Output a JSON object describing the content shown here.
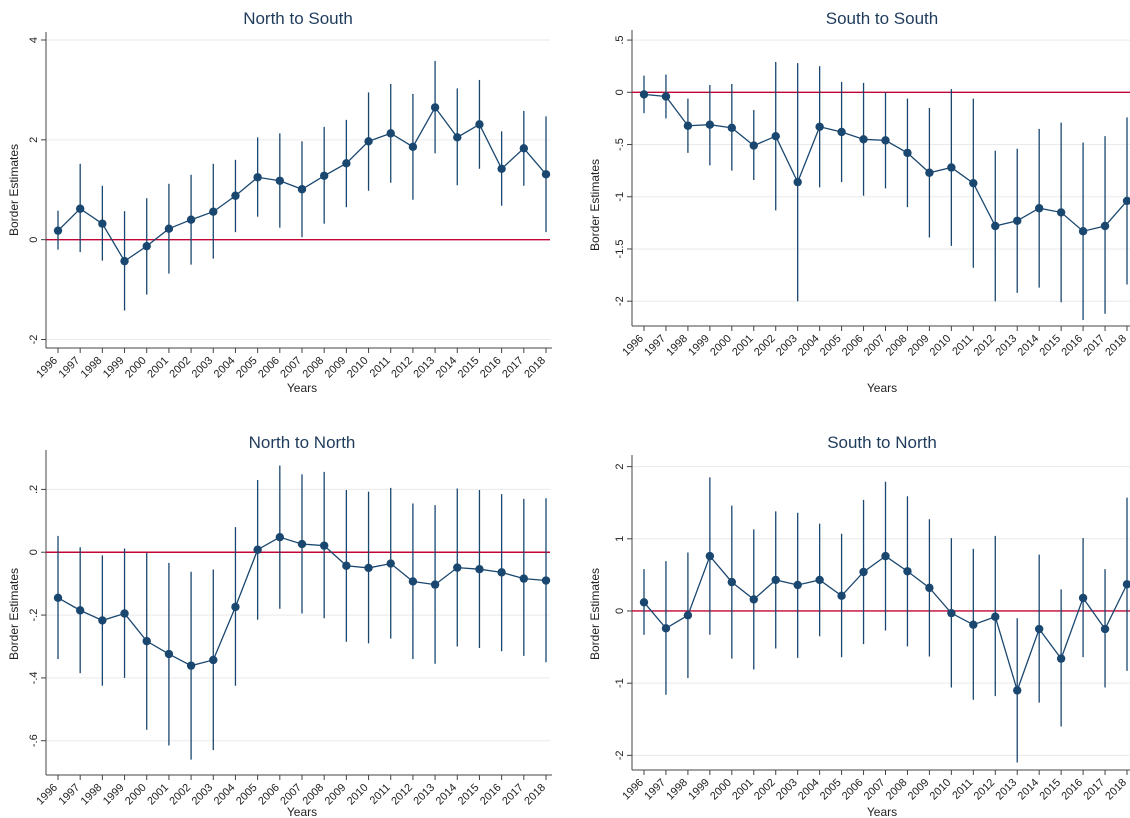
{
  "chart_data": [
    {
      "type": "line",
      "title": "North to South",
      "xlabel": "Years",
      "ylabel": "Border Estimates",
      "x": [
        1996,
        1997,
        1998,
        1999,
        2000,
        2001,
        2002,
        2003,
        2004,
        2005,
        2006,
        2007,
        2008,
        2009,
        2010,
        2011,
        2012,
        2013,
        2014,
        2015,
        2016,
        2017,
        2018
      ],
      "series": [
        {
          "values": [
            0.18,
            0.62,
            0.32,
            -0.43,
            -0.13,
            0.22,
            0.4,
            0.56,
            0.88,
            1.25,
            1.18,
            1.01,
            1.28,
            1.53,
            1.97,
            2.13,
            1.86,
            2.65,
            2.05,
            2.31,
            1.42,
            1.83,
            1.31
          ],
          "ci_low": [
            -0.2,
            -0.25,
            -0.42,
            -1.42,
            -1.1,
            -0.68,
            -0.5,
            -0.38,
            0.15,
            0.46,
            0.24,
            0.05,
            0.32,
            0.65,
            0.98,
            1.14,
            0.8,
            1.73,
            1.09,
            1.42,
            0.68,
            1.08,
            0.15
          ],
          "ci_high": [
            0.58,
            1.52,
            1.08,
            0.57,
            0.83,
            1.12,
            1.3,
            1.52,
            1.6,
            2.05,
            2.13,
            1.97,
            2.26,
            2.4,
            2.95,
            3.12,
            2.92,
            3.58,
            3.03,
            3.2,
            2.17,
            2.58,
            2.47
          ]
        }
      ],
      "ylim": [
        -2.05,
        4.0
      ],
      "yticks": [
        -2,
        0,
        2,
        4
      ],
      "ytick_labels": [
        "-2",
        "0",
        "2",
        "4"
      ],
      "reference_line": 0,
      "colors": {
        "line": "#1a476f",
        "reference": "#c10534",
        "grid": "#eaeaea"
      }
    },
    {
      "type": "line",
      "title": "South to South",
      "xlabel": "Years",
      "ylabel": "Border Estimates",
      "x": [
        1996,
        1997,
        1998,
        1999,
        2000,
        2001,
        2002,
        2003,
        2004,
        2005,
        2006,
        2007,
        2008,
        2009,
        2010,
        2011,
        2012,
        2013,
        2014,
        2015,
        2016,
        2017,
        2018
      ],
      "series": [
        {
          "values": [
            -0.02,
            -0.04,
            -0.32,
            -0.31,
            -0.34,
            -0.51,
            -0.42,
            -0.86,
            -0.33,
            -0.38,
            -0.45,
            -0.46,
            -0.58,
            -0.77,
            -0.72,
            -0.87,
            -1.28,
            -1.23,
            -1.11,
            -1.15,
            -1.33,
            -1.28,
            -1.04
          ],
          "ci_low": [
            -0.2,
            -0.25,
            -0.58,
            -0.7,
            -0.75,
            -0.84,
            -1.13,
            -2.0,
            -0.91,
            -0.86,
            -0.99,
            -0.92,
            -1.1,
            -1.39,
            -1.47,
            -1.68,
            -2.0,
            -1.92,
            -1.87,
            -2.01,
            -2.18,
            -2.12,
            -1.84
          ],
          "ci_high": [
            0.16,
            0.17,
            -0.06,
            0.07,
            0.08,
            -0.17,
            0.29,
            0.28,
            0.25,
            0.1,
            0.09,
            0.0,
            -0.06,
            -0.15,
            0.03,
            -0.06,
            -0.56,
            -0.54,
            -0.35,
            -0.29,
            -0.48,
            -0.42,
            -0.24
          ]
        }
      ],
      "ylim": [
        -2.18,
        0.52
      ],
      "yticks": [
        -2,
        -1.5,
        -1,
        -0.5,
        0,
        0.5
      ],
      "ytick_labels": [
        "-2",
        "-1.5",
        "-1",
        "-.5",
        "0",
        ".5"
      ],
      "reference_line": 0,
      "colors": {
        "line": "#1a476f",
        "reference": "#c10534",
        "grid": "#eaeaea"
      }
    },
    {
      "type": "line",
      "title": "North to North",
      "xlabel": "Years",
      "ylabel": "Border Estimates",
      "x": [
        1996,
        1997,
        1998,
        1999,
        2000,
        2001,
        2002,
        2003,
        2004,
        2005,
        2006,
        2007,
        2008,
        2009,
        2010,
        2011,
        2012,
        2013,
        2014,
        2015,
        2016,
        2017,
        2018
      ],
      "series": [
        {
          "values": [
            -0.145,
            -0.185,
            -0.217,
            -0.195,
            -0.283,
            -0.324,
            -0.361,
            -0.343,
            -0.174,
            0.008,
            0.048,
            0.026,
            0.021,
            -0.043,
            -0.05,
            -0.036,
            -0.093,
            -0.103,
            -0.049,
            -0.054,
            -0.064,
            -0.084,
            -0.09
          ],
          "ci_low": [
            -0.34,
            -0.385,
            -0.425,
            -0.4,
            -0.565,
            -0.615,
            -0.66,
            -0.63,
            -0.425,
            -0.215,
            -0.18,
            -0.195,
            -0.21,
            -0.285,
            -0.29,
            -0.275,
            -0.34,
            -0.355,
            -0.3,
            -0.305,
            -0.315,
            -0.33,
            -0.35
          ],
          "ci_high": [
            0.052,
            0.016,
            -0.01,
            0.012,
            -0.002,
            -0.034,
            -0.062,
            -0.055,
            0.08,
            0.23,
            0.276,
            0.248,
            0.256,
            0.198,
            0.193,
            0.205,
            0.155,
            0.15,
            0.203,
            0.198,
            0.185,
            0.17,
            0.172
          ]
        }
      ],
      "ylim": [
        -0.69,
        0.3
      ],
      "yticks": [
        -0.6,
        -0.4,
        -0.2,
        0,
        0.2
      ],
      "ytick_labels": [
        "-.6",
        "-.4",
        "-.2",
        "0",
        ".2"
      ],
      "reference_line": 0,
      "colors": {
        "line": "#1a476f",
        "reference": "#c10534",
        "grid": "#eaeaea"
      }
    },
    {
      "type": "line",
      "title": "South to North",
      "xlabel": "Years",
      "ylabel": "Border Estimates",
      "x": [
        1996,
        1997,
        1998,
        1999,
        2000,
        2001,
        2002,
        2003,
        2004,
        2005,
        2006,
        2007,
        2008,
        2009,
        2010,
        2011,
        2012,
        2013,
        2014,
        2015,
        2016,
        2017,
        2018
      ],
      "series": [
        {
          "values": [
            0.12,
            -0.24,
            -0.06,
            0.76,
            0.4,
            0.16,
            0.43,
            0.36,
            0.43,
            0.21,
            0.54,
            0.76,
            0.55,
            0.32,
            -0.03,
            -0.19,
            -0.08,
            -1.1,
            -0.25,
            -0.66,
            0.18,
            -0.25,
            0.37
          ],
          "ci_low": [
            -0.33,
            -1.16,
            -0.93,
            -0.33,
            -0.66,
            -0.81,
            -0.52,
            -0.65,
            -0.35,
            -0.64,
            -0.46,
            -0.27,
            -0.49,
            -0.63,
            -1.06,
            -1.23,
            -1.18,
            -2.1,
            -1.27,
            -1.6,
            -0.64,
            -1.06,
            -0.83
          ],
          "ci_high": [
            0.58,
            0.69,
            0.81,
            1.85,
            1.46,
            1.13,
            1.38,
            1.36,
            1.21,
            1.07,
            1.54,
            1.79,
            1.59,
            1.27,
            1.01,
            0.86,
            1.04,
            -0.1,
            0.78,
            0.3,
            1.01,
            0.58,
            1.57
          ]
        }
      ],
      "ylim": [
        -2.12,
        2.05
      ],
      "yticks": [
        -2,
        -1,
        0,
        1,
        2
      ],
      "ytick_labels": [
        "-2",
        "-1",
        "0",
        "1",
        "2"
      ],
      "reference_line": 0,
      "colors": {
        "line": "#1a476f",
        "reference": "#c10534",
        "grid": "#eaeaea"
      }
    }
  ]
}
